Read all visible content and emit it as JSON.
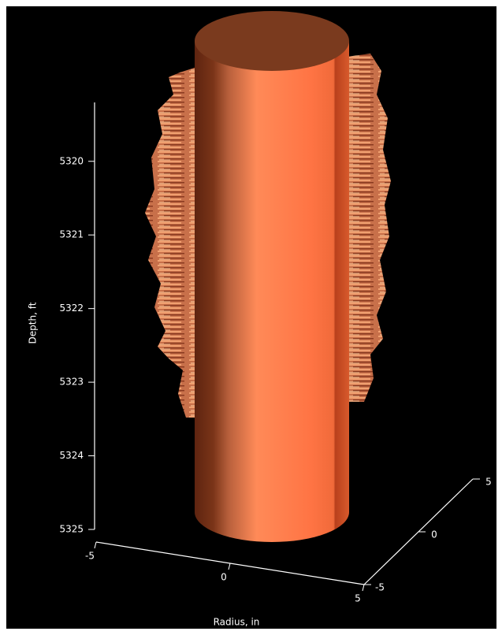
{
  "chart_data": {
    "type": "surface3d",
    "ylabel": "Depth, ft",
    "xlabel": "Radius, in",
    "ylim": [
      5319.2,
      5325
    ],
    "yticks": [
      5320,
      5321,
      5322,
      5323,
      5324,
      5325
    ],
    "xlim": [
      -5,
      5
    ],
    "xticks": [
      -5,
      0,
      5
    ],
    "zlim": [
      -5,
      5
    ],
    "zticks": [
      -5,
      0,
      5
    ],
    "color": "#ff7a48"
  }
}
